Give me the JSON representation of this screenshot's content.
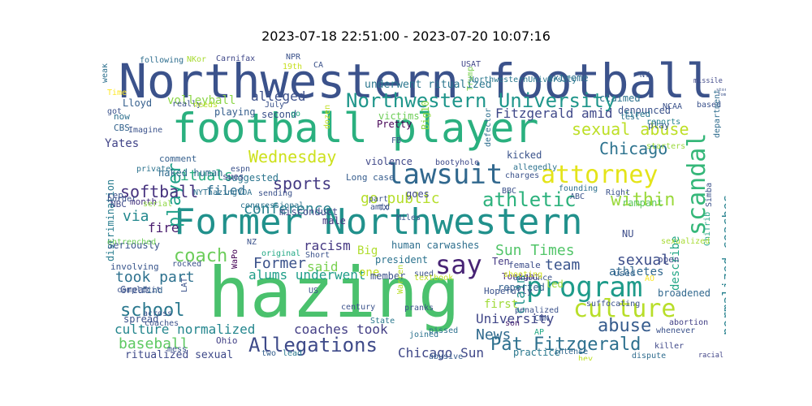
{
  "title": "2023-07-18 22:51:00 - 2023-07-20 10:07:16",
  "words": [
    {
      "text": "Northwestern football",
      "color": "#3b528b"
    },
    {
      "text": "football player",
      "color": "#2ab07f"
    },
    {
      "text": "Former Northwestern",
      "color": "#21918c"
    },
    {
      "text": "hazing",
      "color": "#4ac16d"
    },
    {
      "text": "lawsuit",
      "color": "#31688e"
    },
    {
      "text": "attorney",
      "color": "#e4e419"
    },
    {
      "text": "Northwestern University",
      "color": "#1f968b"
    },
    {
      "text": "program",
      "color": "#1e9b8a"
    },
    {
      "text": "culture",
      "color": "#b8de29"
    },
    {
      "text": "say",
      "color": "#482475"
    },
    {
      "text": "scandal",
      "color": "#35b779"
    },
    {
      "text": "athletic",
      "color": "#2db27d"
    },
    {
      "text": "Allegations",
      "color": "#3e4a89"
    },
    {
      "text": "Pat Fitzgerald",
      "color": "#2d708e"
    },
    {
      "text": "Wednesday",
      "color": "#cde11d"
    },
    {
      "text": "sexual abuse",
      "color": "#bddf26"
    },
    {
      "text": "Chicago",
      "color": "#2c728e"
    },
    {
      "text": "within",
      "color": "#9bd93c"
    },
    {
      "text": "normalized coaches",
      "color": "#26818e"
    },
    {
      "text": "abuse",
      "color": "#365c8d"
    },
    {
      "text": "school",
      "color": "#2a788e"
    },
    {
      "text": "coach",
      "color": "#6ccd5a"
    },
    {
      "text": "conference",
      "color": "#27808e"
    },
    {
      "text": "player",
      "color": "#1fa088"
    },
    {
      "text": "sports",
      "color": "#443983"
    },
    {
      "text": "softball",
      "color": "#46327e"
    },
    {
      "text": "go public",
      "color": "#b5de2b"
    },
    {
      "text": "culture normalized",
      "color": "#24868e"
    },
    {
      "text": "coaches took",
      "color": "#433e85"
    },
    {
      "text": "alleged",
      "color": "#3c508b"
    },
    {
      "text": "rituals",
      "color": "#27ad81"
    },
    {
      "text": "Chicago Sun",
      "color": "#3f4788"
    },
    {
      "text": "via",
      "color": "#23888e"
    },
    {
      "text": "Sun Times",
      "color": "#52c569"
    },
    {
      "text": "sexual",
      "color": "#3d4e8a"
    },
    {
      "text": "took part",
      "color": "#2d718e"
    },
    {
      "text": "team",
      "color": "#3a548c"
    },
    {
      "text": "baseball",
      "color": "#5ec962"
    },
    {
      "text": "claim",
      "color": "#20928c"
    },
    {
      "text": "describe",
      "color": "#21a685"
    },
    {
      "text": "Former",
      "color": "#3b528b"
    },
    {
      "text": "said",
      "color": "#7ad151"
    },
    {
      "text": "Fitzgerald amid",
      "color": "#3f4889"
    },
    {
      "text": "filed",
      "color": "#2e6d8e"
    },
    {
      "text": "alums underwent",
      "color": "#1f9e89"
    },
    {
      "text": "racism",
      "color": "#453882"
    },
    {
      "text": "News",
      "color": "#306a8e"
    },
    {
      "text": "fire",
      "color": "#481b6d"
    },
    {
      "text": "volleyball",
      "color": "#8bd646"
    },
    {
      "text": "University",
      "color": "#404688"
    },
    {
      "text": "ritualized sexual",
      "color": "#3e4989"
    },
    {
      "text": "discrimination",
      "color": "#287c8e"
    },
    {
      "text": "human carwashes",
      "color": "#2e6f8e"
    },
    {
      "text": "Yates",
      "color": "#404387"
    },
    {
      "text": "naked human",
      "color": "#2f6b8e"
    },
    {
      "text": "athletes",
      "color": "#31678e"
    },
    {
      "text": "first",
      "color": "#a0da39"
    },
    {
      "text": "one",
      "color": "#c2df23"
    },
    {
      "text": "Big",
      "color": "#b0dd2f"
    },
    {
      "text": "underwent ritualized",
      "color": "#2a768e"
    },
    {
      "text": "NU",
      "color": "#3d4d8a"
    },
    {
      "text": "denounced",
      "color": "#3b528b"
    },
    {
      "text": "involving",
      "color": "#39568c"
    },
    {
      "text": "Lloyd",
      "color": "#355f8d"
    },
    {
      "text": "violence",
      "color": "#3f4788"
    },
    {
      "text": "Long case",
      "color": "#365d8d"
    },
    {
      "text": "practice",
      "color": "#2a788e"
    },
    {
      "text": "racial",
      "color": "#414487"
    },
    {
      "text": "reported",
      "color": "#34618d"
    },
    {
      "text": "kicked",
      "color": "#3a538b"
    },
    {
      "text": "Seriously",
      "color": "#3a548c"
    },
    {
      "text": "claimed",
      "color": "#2c738e"
    },
    {
      "text": "rampant",
      "color": "#5ec962"
    },
    {
      "text": "broadened",
      "color": "#31688e"
    },
    {
      "text": "spread",
      "color": "#3b518b"
    },
    {
      "text": "suggested",
      "color": "#2b758e"
    },
    {
      "text": "misconduct",
      "color": "#3f4889"
    },
    {
      "text": "male",
      "color": "#46337f"
    },
    {
      "text": "playing",
      "color": "#355e8d"
    },
    {
      "text": "extreme",
      "color": "#2e6e8e"
    },
    {
      "text": "victims",
      "color": "#6ece58"
    },
    {
      "text": "second",
      "color": "#3b528b"
    },
    {
      "text": "president",
      "color": "#2c738e"
    },
    {
      "text": "member",
      "color": "#3b528b"
    },
    {
      "text": "Ten",
      "color": "#443983"
    },
    {
      "text": "female",
      "color": "#3d4e8a"
    },
    {
      "text": "Tonight",
      "color": "#472d7b"
    },
    {
      "text": "led",
      "color": "#a2da37"
    },
    {
      "text": "CBS",
      "color": "#33638d"
    },
    {
      "text": "NBC",
      "color": "#3e4a89"
    },
    {
      "text": "now",
      "color": "#2d708e"
    },
    {
      "text": "rep",
      "color": "#3b528b"
    },
    {
      "text": "comment",
      "color": "#355f8d"
    },
    {
      "text": "sues",
      "color": "#3f4889"
    },
    {
      "text": "month",
      "color": "#46337f"
    },
    {
      "text": "Big10",
      "color": "#8fd744"
    },
    {
      "text": "open",
      "color": "#3e4a89"
    },
    {
      "text": "used",
      "color": "#32648e"
    },
    {
      "text": "play",
      "color": "#365c8d"
    },
    {
      "text": "fired",
      "color": "#2a788e"
    },
    {
      "text": "Pretty",
      "color": "#440154"
    },
    {
      "text": "Great",
      "color": "#3b528b"
    },
    {
      "text": "goes",
      "color": "#3f4889"
    },
    {
      "text": "Hopefully",
      "color": "#3b528b"
    },
    {
      "text": "joined",
      "color": "#2c728e"
    },
    {
      "text": "pissed",
      "color": "#2d708e"
    },
    {
      "text": "abusive",
      "color": "#365c8d"
    },
    {
      "text": "lead",
      "color": "#2a788e"
    },
    {
      "text": "two",
      "color": "#355f8d"
    },
    {
      "text": "Ohio",
      "color": "#424186"
    },
    {
      "text": "find",
      "color": "#33638d"
    },
    {
      "text": "intense",
      "color": "#31688e"
    },
    {
      "text": "dispute",
      "color": "#2f6c8e"
    },
    {
      "text": "killer",
      "color": "#3f4889"
    },
    {
      "text": "whenever",
      "color": "#3b528b"
    },
    {
      "text": "abortion",
      "color": "#424086"
    },
    {
      "text": "AP",
      "color": "#22a884"
    },
    {
      "text": "hey",
      "color": "#bddf26"
    },
    {
      "text": "NKor",
      "color": "#a8db34"
    },
    {
      "text": "Carnifax",
      "color": "#3f4788"
    },
    {
      "text": "NPR",
      "color": "#3b528b"
    },
    {
      "text": "CA",
      "color": "#3b528b"
    },
    {
      "text": "19th",
      "color": "#c8e020"
    },
    {
      "text": "following",
      "color": "#2e6e8e"
    },
    {
      "text": "NY",
      "color": "#3b528b"
    },
    {
      "text": "missile",
      "color": "#3f4889"
    },
    {
      "text": "USAT",
      "color": "#404688"
    },
    {
      "text": "NorthwesternUniversity",
      "color": "#2a788e"
    },
    {
      "text": "Trump",
      "color": "#7ad151"
    },
    {
      "text": "son",
      "color": "#481f70"
    },
    {
      "text": "test",
      "color": "#2c728e"
    },
    {
      "text": "reports",
      "color": "#26828e"
    },
    {
      "text": "weak",
      "color": "#2d708e"
    },
    {
      "text": "Time",
      "color": "#fde725"
    },
    {
      "text": "got",
      "color": "#3b528b"
    },
    {
      "text": "really",
      "color": "#3b528b"
    },
    {
      "text": "needs",
      "color": "#b8de29"
    },
    {
      "text": "July",
      "color": "#3b528b"
    },
    {
      "text": "go",
      "color": "#22a884"
    },
    {
      "text": "dozen",
      "color": "#c2df23"
    },
    {
      "text": "Imagine",
      "color": "#3b528b"
    },
    {
      "text": "based",
      "color": "#3b528b"
    },
    {
      "text": "Tom",
      "color": "#3b528b"
    },
    {
      "text": "NCAA",
      "color": "#3b528b"
    },
    {
      "text": "stories",
      "color": "#3b528b"
    },
    {
      "text": "department",
      "color": "#2f6c8e"
    },
    {
      "text": "Simba",
      "color": "#3b528b"
    },
    {
      "text": "starters",
      "color": "#9bd93c"
    },
    {
      "text": "private",
      "color": "#2c738e"
    },
    {
      "text": "espn",
      "color": "#3b528b"
    },
    {
      "text": "NYThazingVOA",
      "color": "#2d708e"
    },
    {
      "text": "sending",
      "color": "#3b528b"
    },
    {
      "text": "bootyhole",
      "color": "#3e4a89"
    },
    {
      "text": "FB",
      "color": "#3b528b"
    },
    {
      "text": "defector",
      "color": "#2e6e8e"
    },
    {
      "text": "allegedly",
      "color": "#2c728e"
    },
    {
      "text": "charges",
      "color": "#3b528b"
    },
    {
      "text": "BBC",
      "color": "#3b528b"
    },
    {
      "text": "founding",
      "color": "#2d708e"
    },
    {
      "text": "ABC",
      "color": "#3b528b"
    },
    {
      "text": "Right",
      "color": "#3b528b"
    },
    {
      "text": "border",
      "color": "#3b528b"
    },
    {
      "text": "serial",
      "color": "#8fd744"
    },
    {
      "text": "congressional",
      "color": "#2c728e"
    },
    {
      "text": "ChiTrib",
      "color": "#21a685"
    },
    {
      "text": "entrenched",
      "color": "#6ece58"
    },
    {
      "text": "rocked",
      "color": "#3b528b"
    },
    {
      "text": "WaPo",
      "color": "#440154"
    },
    {
      "text": "NZ",
      "color": "#3b528b"
    },
    {
      "text": "original",
      "color": "#22a884"
    },
    {
      "text": "sexualized",
      "color": "#a8db34"
    },
    {
      "text": "Short",
      "color": "#3b528b"
    },
    {
      "text": "part",
      "color": "#3b528b"
    },
    {
      "text": "amid",
      "color": "#3b528b"
    },
    {
      "text": "TX",
      "color": "#3b528b"
    },
    {
      "text": "Miles",
      "color": "#3b528b"
    },
    {
      "text": "sued",
      "color": "#3b528b"
    },
    {
      "text": "announce",
      "color": "#3b528b"
    },
    {
      "text": "shooting",
      "color": "#d2e21b"
    },
    {
      "text": "textbook",
      "color": "#c2df23"
    },
    {
      "text": "complicit",
      "color": "#3b528b"
    },
    {
      "text": "across",
      "color": "#3b528b"
    },
    {
      "text": "LAT",
      "color": "#3b528b"
    },
    {
      "text": "US",
      "color": "#3b528b"
    },
    {
      "text": "century",
      "color": "#3b528b"
    },
    {
      "text": "Warren",
      "color": "#b8de29"
    },
    {
      "text": "State",
      "color": "#2a788e"
    },
    {
      "text": "pranks",
      "color": "#3b528b"
    },
    {
      "text": "penalized",
      "color": "#3b528b"
    },
    {
      "text": "CNN",
      "color": "#3b528b"
    },
    {
      "text": "suffocating",
      "color": "#3b528b"
    },
    {
      "text": "AO",
      "color": "#fde725"
    },
    {
      "text": "coaches",
      "color": "#3b528b"
    },
    {
      "text": "mess",
      "color": "#3b528b"
    }
  ]
}
